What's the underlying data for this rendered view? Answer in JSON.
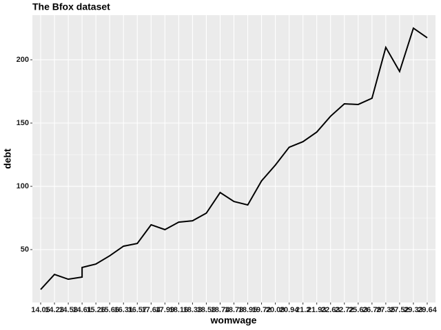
{
  "chart_data": {
    "type": "line",
    "title": "The Bfox dataset",
    "x_label": "womwage",
    "y_label": "debt",
    "x": [
      "14.05",
      "14.23",
      "14.58",
      "14.61",
      "14.61",
      "15.26",
      "15.66",
      "16.31",
      "16.57",
      "17.64",
      "17.99",
      "18.16",
      "18.33",
      "18.58",
      "18.74",
      "18.78",
      "18.95",
      "19.72",
      "20.08",
      "20.94",
      "21.2",
      "21.93",
      "22.63",
      "22.72",
      "25.63",
      "26.79",
      "27.35",
      "27.52",
      "29.33",
      "29.64"
    ],
    "values": [
      18.5,
      30.4,
      26.6,
      28.3,
      35.9,
      38.6,
      45.1,
      52.7,
      54.9,
      69.6,
      65.8,
      71.7,
      72.8,
      78.8,
      95.1,
      88,
      85.3,
      104.3,
      116.8,
      130.9,
      135.3,
      142.9,
      155.4,
      165.2,
      164.7,
      169.6,
      209.8,
      190.8,
      225,
      217.4
    ],
    "color": "#000000",
    "ylim": [
      8.2,
      235.3
    ],
    "yticks": [
      50,
      100,
      150,
      200
    ],
    "grid": true
  }
}
